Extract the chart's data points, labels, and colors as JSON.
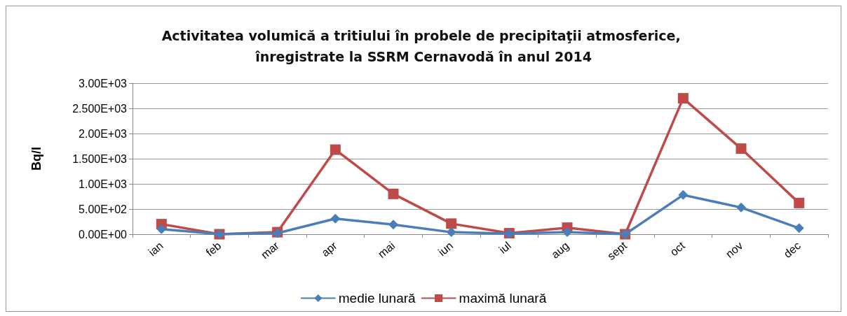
{
  "chart_data": {
    "type": "line",
    "title": "Activitatea volumică a tritiului în probele de precipitaţii atmosferice, înregistrate la SSRM Cernavodă în anul 2014",
    "ylabel": "Bq/l",
    "categories": [
      "ian",
      "feb",
      "mar",
      "apr",
      "mai",
      "iun",
      "iul",
      "aug",
      "sept",
      "oct",
      "nov",
      "dec"
    ],
    "series": [
      {
        "name": "medie lunară",
        "color": "#4a7ebb",
        "marker": "diamond",
        "values": [
          100,
          0,
          20,
          310,
          190,
          40,
          10,
          40,
          0,
          780,
          530,
          120
        ]
      },
      {
        "name": "maximă lunară",
        "color": "#be4b48",
        "marker": "square",
        "values": [
          200,
          0,
          40,
          1680,
          800,
          210,
          20,
          130,
          0,
          2700,
          1700,
          620
        ]
      }
    ],
    "ylim": [
      0,
      3000
    ],
    "yticks": [
      {
        "value": 0,
        "label": "0.00E+00"
      },
      {
        "value": 500,
        "label": "5.00E+02"
      },
      {
        "value": 1000,
        "label": "1.00E+03"
      },
      {
        "value": 1500,
        "label": "1.500E+03"
      },
      {
        "value": 2000,
        "label": "2.00E+03"
      },
      {
        "value": 2500,
        "label": "2.500E+03"
      },
      {
        "value": 3000,
        "label": "3.00E+03"
      }
    ],
    "grid": "y",
    "legend": "bottom",
    "line_style": "solid"
  }
}
